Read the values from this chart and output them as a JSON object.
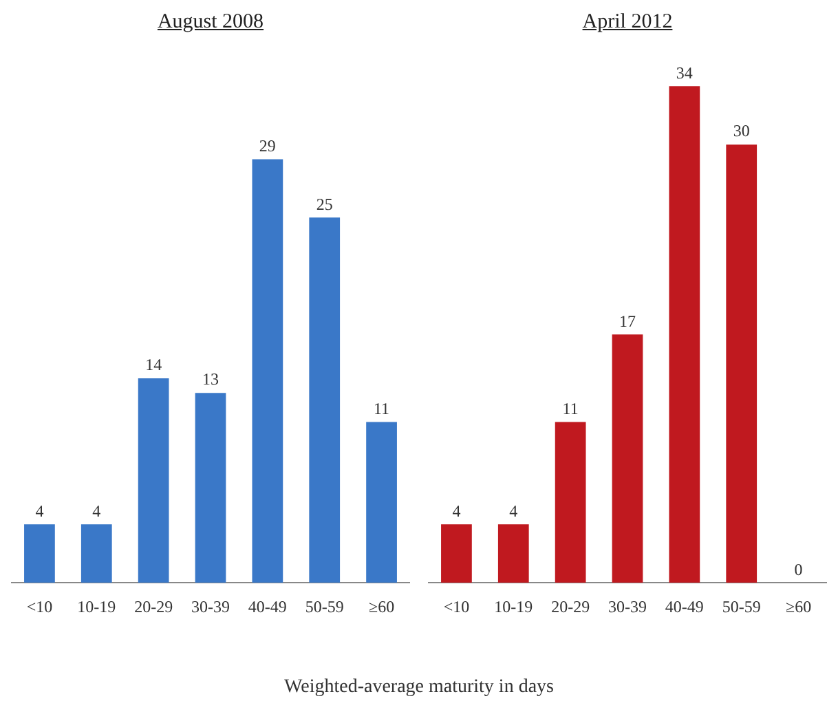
{
  "chart_data": [
    {
      "type": "bar",
      "title": "August 2008",
      "categories": [
        "<10",
        "10-19",
        "20-29",
        "30-39",
        "40-49",
        "50-59",
        "≥60"
      ],
      "values": [
        4,
        4,
        14,
        13,
        29,
        25,
        11
      ],
      "color": "#3a78c8",
      "data_labels": true,
      "xlabel": "Weighted-average maturity in days",
      "grid": false,
      "legend": false
    },
    {
      "type": "bar",
      "title": "April 2012",
      "categories": [
        "<10",
        "10-19",
        "20-29",
        "30-39",
        "40-49",
        "50-59",
        "≥60"
      ],
      "values": [
        4,
        4,
        11,
        17,
        34,
        30,
        0
      ],
      "color": "#c0191f",
      "data_labels": true,
      "grid": false,
      "legend": false
    }
  ]
}
